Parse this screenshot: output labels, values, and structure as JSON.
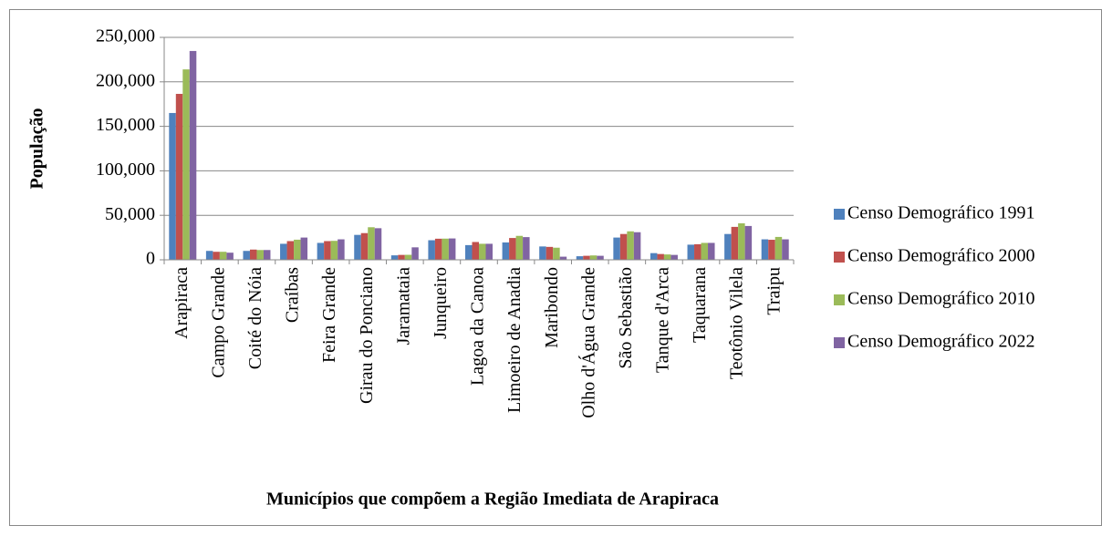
{
  "chart_data": {
    "type": "bar",
    "xlabel": "Municípios que compõem a Região Imediata de Arapiraca",
    "ylabel": "População",
    "categories": [
      "Arapiraca",
      "Campo Grande",
      "Coité do Nóia",
      "Craíbas",
      "Feira Grande",
      "Girau do Ponciano",
      "Jaramataia",
      "Junqueiro",
      "Lagoa da Canoa",
      "Limoeiro de Anadia",
      "Maribondo",
      "Olho d'Água Grande",
      "São Sebastião",
      "Tanque d'Arca",
      "Taquarana",
      "Teotônio Vilela",
      "Traipu"
    ],
    "series": [
      {
        "name": "Censo Demográfico 1991",
        "color": "#4f81bd",
        "values": [
          165000,
          10000,
          10000,
          18000,
          19000,
          28000,
          5000,
          22000,
          16500,
          19500,
          15000,
          4000,
          25000,
          7500,
          17000,
          29000,
          23000
        ]
      },
      {
        "name": "Censo Demográfico 2000",
        "color": "#c0504d",
        "values": [
          186500,
          9000,
          11500,
          21000,
          21000,
          30000,
          5500,
          23700,
          20000,
          24500,
          14500,
          4500,
          29000,
          6500,
          17500,
          37000,
          22500
        ]
      },
      {
        "name": "Censo Demográfico 2010",
        "color": "#9bbb59",
        "values": [
          214000,
          9000,
          11000,
          22600,
          21300,
          36600,
          5600,
          23800,
          18000,
          26900,
          13600,
          4900,
          32000,
          6000,
          19000,
          41000,
          25700
        ]
      },
      {
        "name": "Censo Demográfico 2022",
        "color": "#8064a2",
        "values": [
          234700,
          8000,
          11000,
          25000,
          23000,
          35500,
          14000,
          24000,
          18000,
          25500,
          3500,
          4500,
          31000,
          5500,
          19000,
          38000,
          23000
        ]
      }
    ],
    "ylim": [
      0,
      250000
    ],
    "yticks": [
      0,
      {
        "value": 50000,
        "label": "50,000"
      },
      {
        "value": 100000,
        "label": "100,000"
      },
      {
        "value": 150000,
        "label": "150,000"
      },
      {
        "value": 200000,
        "label": "200,000"
      },
      {
        "value": 250000,
        "label": "250,000"
      }
    ],
    "grid": true,
    "legend": "right"
  }
}
